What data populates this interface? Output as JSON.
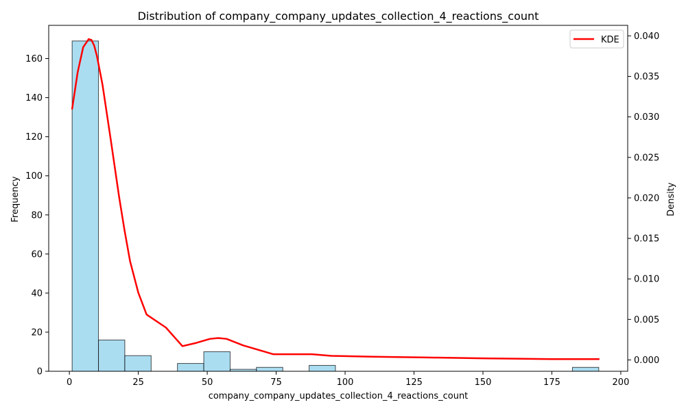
{
  "chart_data": {
    "type": "histogram",
    "title": "Distribution of company_company_updates_collection_4_reactions_count",
    "xlabel": "company_company_updates_collection_4_reactions_count",
    "ylabel": "Frequency",
    "y2label": "Density",
    "xlim": [
      -7.5,
      202.5
    ],
    "ylim": [
      0,
      177
    ],
    "y2lim": [
      -0.0014,
      0.0413
    ],
    "x_ticks": [
      0,
      25,
      50,
      75,
      100,
      125,
      150,
      175,
      200
    ],
    "y_ticks": [
      0,
      20,
      40,
      60,
      80,
      100,
      120,
      140,
      160
    ],
    "y2_ticks": [
      0.0,
      0.005,
      0.01,
      0.015,
      0.02,
      0.025,
      0.03,
      0.035,
      0.04
    ],
    "x_tick_labels": [
      "0",
      "25",
      "50",
      "75",
      "100",
      "125",
      "150",
      "175",
      "200"
    ],
    "y_tick_labels": [
      "0",
      "20",
      "40",
      "60",
      "80",
      "100",
      "120",
      "140",
      "160"
    ],
    "y2_tick_labels": [
      "0.000",
      "0.005",
      "0.010",
      "0.015",
      "0.020",
      "0.025",
      "0.030",
      "0.035",
      "0.040"
    ],
    "bin_edges": [
      1,
      10.55,
      20.1,
      29.65,
      39.2,
      48.75,
      58.3,
      67.85,
      77.4,
      86.95,
      96.5,
      106.05,
      115.6,
      125.15,
      134.7,
      144.25,
      153.8,
      163.35,
      172.9,
      182.45,
      192
    ],
    "counts": [
      169,
      16,
      8,
      0,
      4,
      10,
      1,
      2,
      0,
      3,
      0,
      0,
      0,
      0,
      0,
      0,
      0,
      0,
      0,
      2
    ],
    "kde": {
      "name": "KDE",
      "x": [
        1,
        3,
        5,
        7,
        8,
        9,
        10,
        12,
        15,
        18,
        20,
        22,
        25,
        28,
        35,
        41,
        46,
        51,
        54,
        57,
        63,
        70,
        74,
        88,
        95,
        110,
        130,
        150,
        175,
        192
      ],
      "y": [
        0.031,
        0.0355,
        0.0386,
        0.0396,
        0.0395,
        0.0388,
        0.0375,
        0.034,
        0.0272,
        0.0202,
        0.016,
        0.0122,
        0.0083,
        0.0056,
        0.004,
        0.0017,
        0.0021,
        0.0026,
        0.0027,
        0.0026,
        0.0018,
        0.0011,
        0.0007,
        0.0007,
        0.0005,
        0.0004,
        0.0003,
        0.0002,
        0.0001,
        0.0001
      ]
    },
    "legend": {
      "position": "top-right",
      "entries": [
        "KDE"
      ]
    },
    "grid": false,
    "colors": {
      "bar_fill": "#87ceeb",
      "bar_edge": "#000000",
      "kde_line": "#ff0000"
    }
  }
}
